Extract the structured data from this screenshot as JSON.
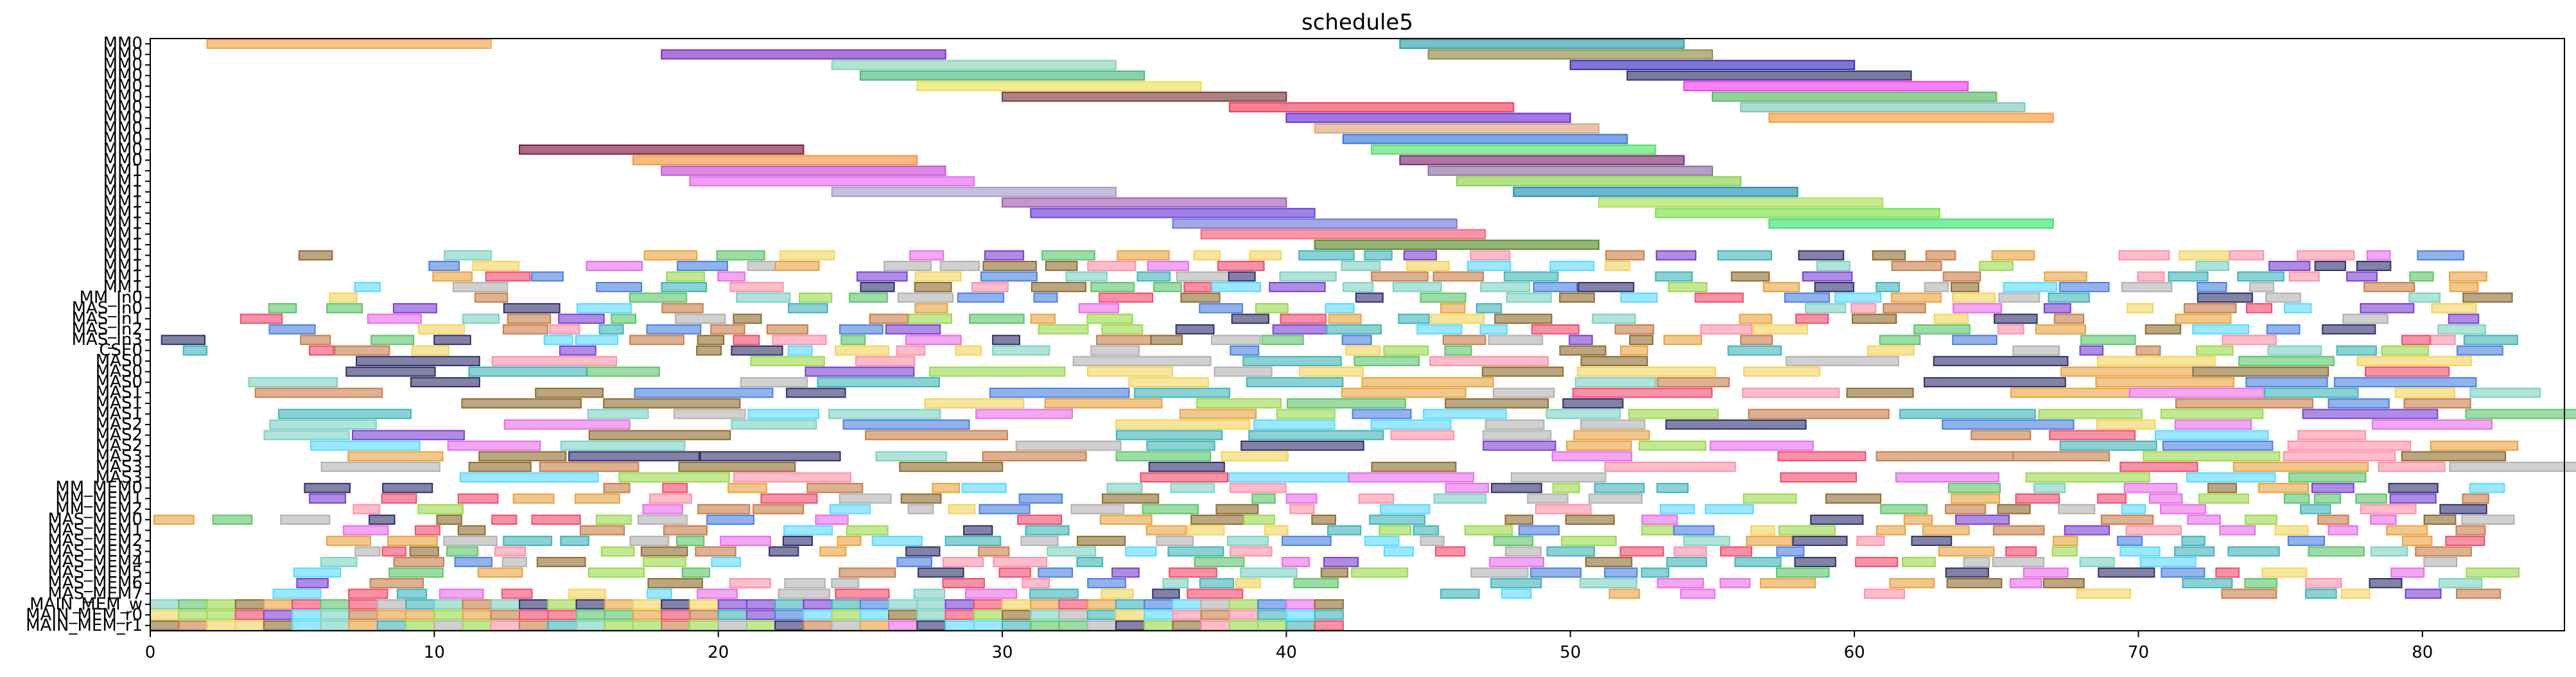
{
  "chart_data": {
    "type": "gantt",
    "title": "schedule5",
    "xlabel": "",
    "ylabel": "",
    "xlim": [
      0,
      85
    ],
    "xticks": [
      0,
      10,
      20,
      30,
      40,
      50,
      60,
      70,
      80
    ],
    "grid": false,
    "rows": [
      "MM0",
      "MM0",
      "MM0",
      "MM0",
      "MM0",
      "MM0",
      "MM0",
      "MM0",
      "MM0",
      "MM0",
      "MM0",
      "MM0",
      "MM1",
      "MM1",
      "MM1",
      "MM1",
      "MM1",
      "MM1",
      "MM1",
      "MM1",
      "MM1",
      "MM1",
      "MM1",
      "MM1",
      "MM_In0",
      "MAS_In0",
      "MAS_In1",
      "MAS_In2",
      "MAS_In3",
      "CSE0",
      "MAS0",
      "MAS0",
      "MAS0",
      "MAS1",
      "MAS1",
      "MAS1",
      "MAS2",
      "MAS2",
      "MAS2",
      "MAS3",
      "MAS3",
      "MAS3",
      "MM_MEM0",
      "MM_MEM1",
      "MM_MEM2",
      "MAS_MEM0",
      "MAS_MEM1",
      "MAS_MEM2",
      "MAS_MEM3",
      "MAS_MEM4",
      "MAS_MEM5",
      "MAS_MEM6",
      "MAS_MEM7",
      "MAIN_MEM_w",
      "MAIN_MEM_r0",
      "MAIN_MEM_r1"
    ],
    "series": [
      {
        "row": 0,
        "segments": [
          [
            2,
            12,
            "#f3a64a"
          ],
          [
            44,
            54,
            "#27a2aa"
          ]
        ]
      },
      {
        "row": 1,
        "segments": [
          [
            18,
            28,
            "#7f2fc4"
          ],
          [
            45,
            55,
            "#8d8d46"
          ]
        ]
      },
      {
        "row": 2,
        "segments": [
          [
            24,
            34,
            "#8bd3b9"
          ],
          [
            50,
            60,
            "#3a2dbb"
          ]
        ]
      },
      {
        "row": 3,
        "segments": [
          [
            25,
            35,
            "#4bb779"
          ],
          [
            52,
            62,
            "#2f3468"
          ]
        ]
      },
      {
        "row": 4,
        "segments": [
          [
            27,
            37,
            "#ece05b"
          ],
          [
            54,
            64,
            "#f43df3"
          ]
        ]
      },
      {
        "row": 5,
        "segments": [
          [
            30,
            40,
            "#7c3d3d"
          ],
          [
            55,
            65,
            "#5bb768"
          ]
        ]
      },
      {
        "row": 6,
        "segments": [
          [
            38,
            48,
            "#f0405d"
          ],
          [
            56,
            66,
            "#7fc6b8"
          ]
        ]
      },
      {
        "row": 7,
        "segments": [
          [
            40,
            50,
            "#6e2fd4"
          ],
          [
            57,
            67,
            "#f59a3a"
          ]
        ]
      },
      {
        "row": 8,
        "segments": [
          [
            41,
            51,
            "#d9a67d"
          ]
        ]
      },
      {
        "row": 9,
        "segments": [
          [
            42,
            52,
            "#3a74dd"
          ]
        ]
      },
      {
        "row": 10,
        "segments": [
          [
            13,
            23,
            "#7e1c45"
          ],
          [
            43,
            53,
            "#55e06b"
          ]
        ]
      },
      {
        "row": 11,
        "segments": [
          [
            17,
            27,
            "#f0973a"
          ],
          [
            44,
            54,
            "#7e2d6f"
          ]
        ]
      },
      {
        "row": 12,
        "segments": [
          [
            18,
            28,
            "#c64fd6"
          ],
          [
            45,
            55,
            "#8a6f9f"
          ]
        ]
      },
      {
        "row": 13,
        "segments": [
          [
            19,
            29,
            "#e66aef"
          ],
          [
            46,
            56,
            "#8bd04a"
          ]
        ]
      },
      {
        "row": 14,
        "segments": [
          [
            24,
            34,
            "#a79bc7"
          ],
          [
            48,
            58,
            "#1e8fb4"
          ]
        ]
      },
      {
        "row": 15,
        "segments": [
          [
            30,
            40,
            "#9f5fb3"
          ],
          [
            51,
            61,
            "#aadf57"
          ]
        ]
      },
      {
        "row": 16,
        "segments": [
          [
            31,
            41,
            "#6c3fd9"
          ],
          [
            53,
            63,
            "#7ee04a"
          ]
        ]
      },
      {
        "row": 17,
        "segments": [
          [
            36,
            46,
            "#6e7ad8"
          ],
          [
            57,
            67,
            "#3ee070"
          ]
        ]
      },
      {
        "row": 18,
        "segments": [
          [
            37,
            47,
            "#f3617a"
          ]
        ]
      },
      {
        "row": 19,
        "segments": [
          [
            41,
            51,
            "#5e8a2e"
          ]
        ]
      }
    ],
    "dense_rows_start": 20,
    "dense_rows_end": 56
  }
}
